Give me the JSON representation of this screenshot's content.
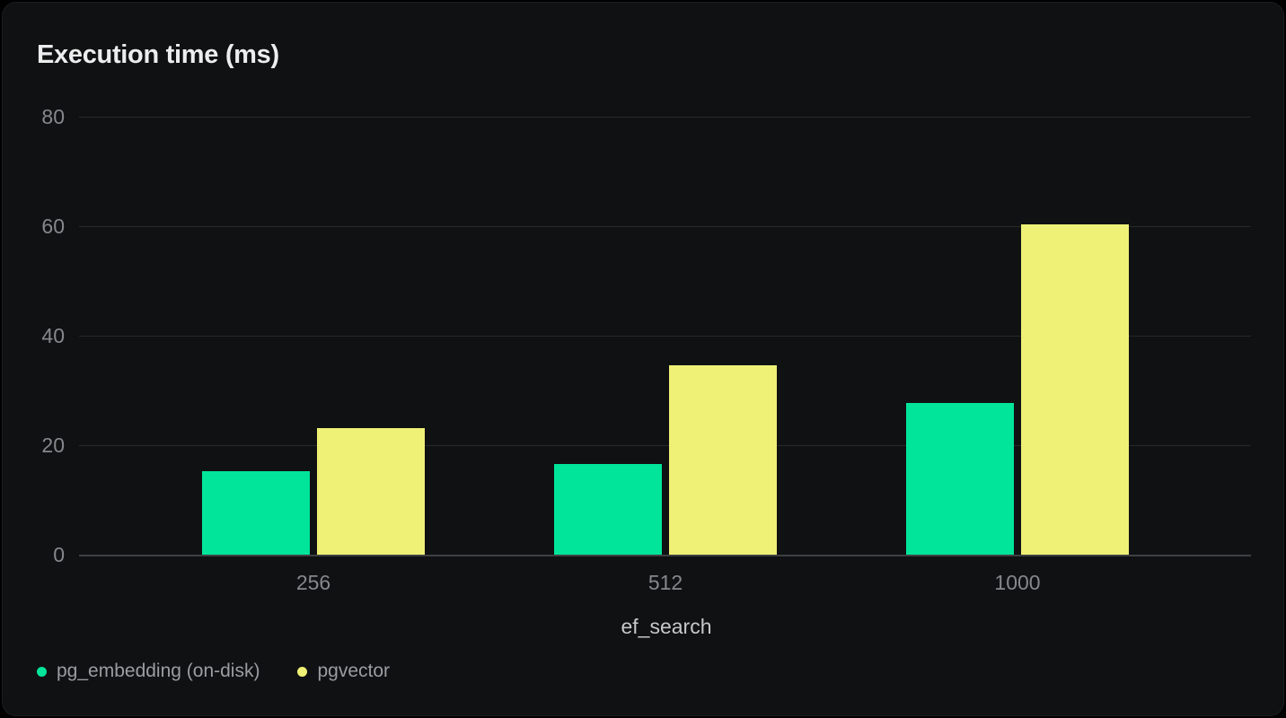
{
  "chart_data": {
    "type": "bar",
    "title": "Execution time (ms)",
    "xlabel": "ef_search",
    "ylabel": "",
    "categories": [
      "256",
      "512",
      "1000"
    ],
    "series": [
      {
        "name": "pg_embedding (on-disk)",
        "color": "#00e599",
        "values": [
          15.2,
          16.6,
          27.7
        ]
      },
      {
        "name": "pgvector",
        "color": "#eff176",
        "values": [
          23.1,
          34.6,
          60.4
        ]
      }
    ],
    "ylim": [
      0,
      80
    ],
    "yticks": [
      0,
      20,
      40,
      60,
      80
    ],
    "grid": "horizontal-only",
    "legend_position": "bottom-left"
  },
  "colors": {
    "background": "#000000",
    "card_background": "#101112",
    "title": "#ededee",
    "gridline": "#27292b",
    "zero_line": "#3d4043",
    "tick_label": "#85888c",
    "axis_label": "#c6c8ca",
    "legend_text": "#9a9da1"
  }
}
